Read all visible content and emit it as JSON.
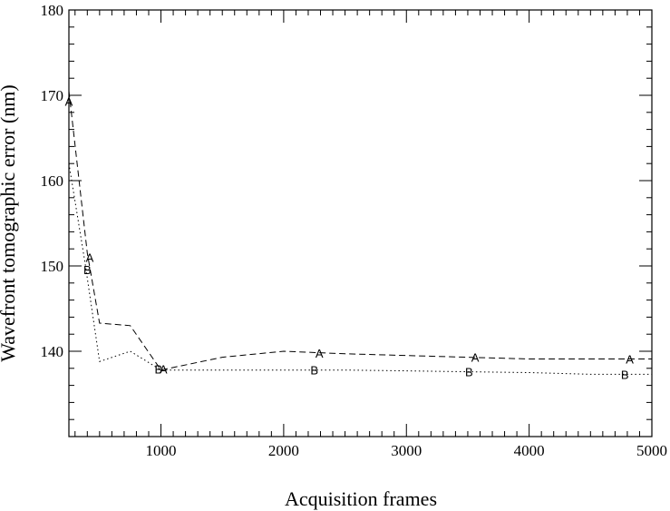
{
  "chart_data": {
    "type": "line",
    "xlabel": "Acquisition frames",
    "ylabel": "Wavefront tomographic error (nm)",
    "xlim": [
      250,
      5000
    ],
    "ylim": [
      130,
      180
    ],
    "x_ticks": [
      1000,
      2000,
      3000,
      4000,
      5000
    ],
    "y_ticks": [
      140,
      150,
      160,
      170,
      180
    ],
    "grid": false,
    "series": [
      {
        "name": "A",
        "line_style": "dashed",
        "marker_label": "A",
        "points": [
          [
            250,
            170.5
          ],
          [
            400,
            151.5
          ],
          [
            500,
            143.3
          ],
          [
            750,
            143.0
          ],
          [
            1000,
            137.8
          ],
          [
            1500,
            139.3
          ],
          [
            2000,
            140.0
          ],
          [
            2500,
            139.7
          ],
          [
            3000,
            139.5
          ],
          [
            3500,
            139.3
          ],
          [
            4000,
            139.1
          ],
          [
            4500,
            139.1
          ],
          [
            5000,
            139.1
          ]
        ],
        "markers": [
          [
            250,
            169.3
          ],
          [
            420,
            151.0
          ],
          [
            1020,
            137.9
          ],
          [
            2290,
            139.8
          ],
          [
            3560,
            139.3
          ],
          [
            4820,
            139.1
          ]
        ]
      },
      {
        "name": "B",
        "line_style": "dotted",
        "marker_label": "B",
        "points": [
          [
            250,
            162.0
          ],
          [
            380,
            150.5
          ],
          [
            500,
            138.8
          ],
          [
            750,
            140.0
          ],
          [
            1000,
            137.8
          ],
          [
            1500,
            137.8
          ],
          [
            2000,
            137.8
          ],
          [
            2500,
            137.8
          ],
          [
            3000,
            137.7
          ],
          [
            3500,
            137.6
          ],
          [
            4000,
            137.5
          ],
          [
            4500,
            137.3
          ],
          [
            5000,
            137.3
          ]
        ],
        "markers": [
          [
            400,
            149.6
          ],
          [
            980,
            137.9
          ],
          [
            2250,
            137.8
          ],
          [
            3510,
            137.6
          ],
          [
            4780,
            137.3
          ]
        ]
      }
    ]
  }
}
